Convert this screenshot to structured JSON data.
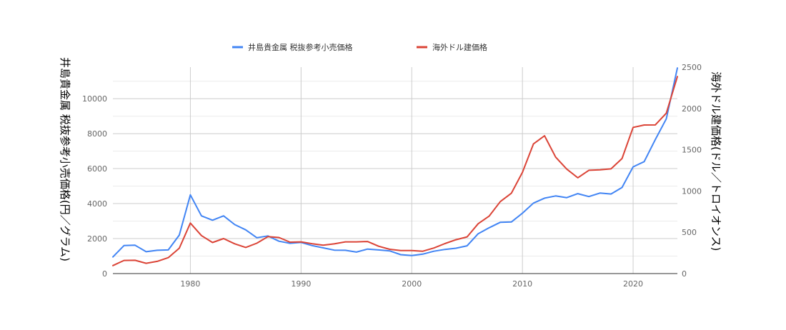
{
  "chart_data": {
    "type": "line",
    "title": "",
    "legend_position": "top",
    "grid": true,
    "x": [
      1973,
      1974,
      1975,
      1976,
      1977,
      1978,
      1979,
      1980,
      1981,
      1982,
      1983,
      1984,
      1985,
      1986,
      1987,
      1988,
      1989,
      1990,
      1991,
      1992,
      1993,
      1994,
      1995,
      1996,
      1997,
      1998,
      1999,
      2000,
      2001,
      2002,
      2003,
      2004,
      2005,
      2006,
      2007,
      2008,
      2009,
      2010,
      2011,
      2012,
      2013,
      2014,
      2015,
      2016,
      2017,
      2018,
      2019,
      2020,
      2021,
      2022,
      2023,
      2024
    ],
    "xlim": [
      1973,
      2024
    ],
    "x_ticks": [
      "1980",
      "1990",
      "2000",
      "2010",
      "2020"
    ],
    "y_left": {
      "label": "井島貴金属 税抜参考小売価格(円／グラム)",
      "lim": [
        0,
        11800
      ],
      "ticks": [
        "0",
        "2000",
        "4000",
        "6000",
        "8000",
        "10000"
      ]
    },
    "y_right": {
      "label": "海外ドル建価格(ドル／トロイオンス)",
      "lim": [
        0,
        2500
      ],
      "ticks": [
        "0",
        "500",
        "1000",
        "1500",
        "2000",
        "2500"
      ]
    },
    "series": [
      {
        "name": "井島貴金属 税抜参考小売価格",
        "axis": "left",
        "color": "#4285f4",
        "values": [
          950,
          1600,
          1620,
          1250,
          1330,
          1350,
          2200,
          4500,
          3300,
          3050,
          3300,
          2800,
          2500,
          2050,
          2150,
          1850,
          1730,
          1780,
          1600,
          1470,
          1340,
          1330,
          1230,
          1400,
          1350,
          1300,
          1080,
          1030,
          1110,
          1280,
          1380,
          1450,
          1590,
          2280,
          2620,
          2930,
          2950,
          3450,
          4030,
          4310,
          4440,
          4340,
          4570,
          4400,
          4600,
          4550,
          4920,
          6100,
          6400,
          7650,
          8850,
          11750
        ]
      },
      {
        "name": "海外ドル建価格",
        "axis": "right",
        "color": "#db4437",
        "values": [
          97,
          159,
          161,
          125,
          148,
          193,
          307,
          612,
          460,
          376,
          424,
          361,
          317,
          368,
          447,
          437,
          381,
          384,
          362,
          344,
          360,
          384,
          384,
          388,
          331,
          294,
          279,
          279,
          271,
          310,
          363,
          410,
          445,
          604,
          697,
          872,
          972,
          1225,
          1571,
          1669,
          1411,
          1266,
          1160,
          1251,
          1257,
          1268,
          1393,
          1770,
          1799,
          1800,
          1943,
          2386
        ]
      }
    ]
  }
}
